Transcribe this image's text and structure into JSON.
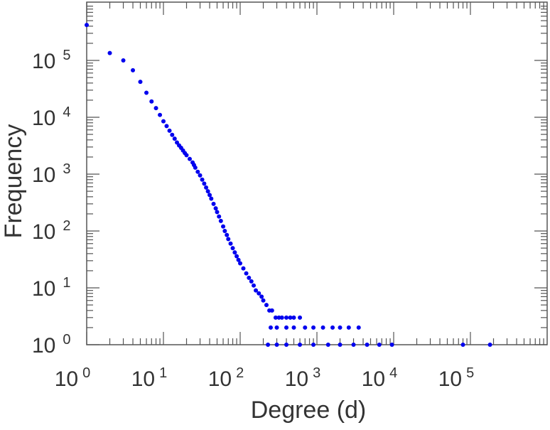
{
  "chart_data": {
    "type": "scatter",
    "xlabel": "Degree (d)",
    "ylabel": "Frequency",
    "x_scale": "log",
    "y_scale": "log",
    "xlim": [
      1,
      1000000
    ],
    "ylim": [
      1,
      1000000
    ],
    "grid": false,
    "legend": "none",
    "marker_color": "#0000ee",
    "x_ticks": [
      {
        "base": "10",
        "exp": "0"
      },
      {
        "base": "10",
        "exp": "1"
      },
      {
        "base": "10",
        "exp": "2"
      },
      {
        "base": "10",
        "exp": "3"
      },
      {
        "base": "10",
        "exp": "4"
      },
      {
        "base": "10",
        "exp": "5"
      }
    ],
    "y_ticks": [
      {
        "base": "10",
        "exp": "0"
      },
      {
        "base": "10",
        "exp": "1"
      },
      {
        "base": "10",
        "exp": "2"
      },
      {
        "base": "10",
        "exp": "3"
      },
      {
        "base": "10",
        "exp": "4"
      },
      {
        "base": "10",
        "exp": "5"
      }
    ],
    "points": [
      [
        1,
        420000
      ],
      [
        2,
        135000
      ],
      [
        3,
        100000
      ],
      [
        4,
        67000
      ],
      [
        5,
        42000
      ],
      [
        6,
        27000
      ],
      [
        7,
        19000
      ],
      [
        8,
        14500
      ],
      [
        9,
        11000
      ],
      [
        10,
        8500
      ],
      [
        11,
        7000
      ],
      [
        12,
        5800
      ],
      [
        13,
        4900
      ],
      [
        14,
        4200
      ],
      [
        15,
        3600
      ],
      [
        16,
        3200
      ],
      [
        17,
        2900
      ],
      [
        18,
        2600
      ],
      [
        19,
        2350
      ],
      [
        20,
        2150
      ],
      [
        22,
        1850
      ],
      [
        24,
        1600
      ],
      [
        25,
        1450
      ],
      [
        26,
        1300
      ],
      [
        28,
        1100
      ],
      [
        30,
        950
      ],
      [
        32,
        800
      ],
      [
        34,
        680
      ],
      [
        36,
        580
      ],
      [
        38,
        500
      ],
      [
        40,
        430
      ],
      [
        42,
        370
      ],
      [
        45,
        300
      ],
      [
        48,
        250
      ],
      [
        50,
        215
      ],
      [
        53,
        180
      ],
      [
        56,
        150
      ],
      [
        60,
        120
      ],
      [
        63,
        100
      ],
      [
        67,
        85
      ],
      [
        70,
        72
      ],
      [
        75,
        60
      ],
      [
        80,
        50
      ],
      [
        85,
        42
      ],
      [
        90,
        36
      ],
      [
        95,
        31
      ],
      [
        100,
        27
      ],
      [
        110,
        22
      ],
      [
        120,
        18
      ],
      [
        130,
        15
      ],
      [
        140,
        13
      ],
      [
        150,
        11
      ],
      [
        160,
        9
      ],
      [
        175,
        8
      ],
      [
        190,
        7
      ],
      [
        200,
        6
      ],
      [
        220,
        5
      ],
      [
        240,
        4
      ],
      [
        260,
        4
      ],
      [
        290,
        3
      ],
      [
        320,
        3
      ],
      [
        350,
        3
      ],
      [
        400,
        3
      ],
      [
        450,
        3
      ],
      [
        500,
        3
      ],
      [
        600,
        3
      ],
      [
        250,
        2
      ],
      [
        300,
        2
      ],
      [
        400,
        2
      ],
      [
        500,
        2
      ],
      [
        700,
        2
      ],
      [
        900,
        2
      ],
      [
        1200,
        2
      ],
      [
        1600,
        2
      ],
      [
        2000,
        2
      ],
      [
        2600,
        2
      ],
      [
        3500,
        2
      ],
      [
        230,
        1
      ],
      [
        300,
        1
      ],
      [
        400,
        1
      ],
      [
        600,
        1
      ],
      [
        900,
        1
      ],
      [
        1400,
        1
      ],
      [
        2000,
        1
      ],
      [
        3000,
        1
      ],
      [
        4500,
        1
      ],
      [
        6500,
        1
      ],
      [
        9500,
        1
      ],
      [
        80000,
        1
      ],
      [
        180000,
        1
      ]
    ]
  }
}
